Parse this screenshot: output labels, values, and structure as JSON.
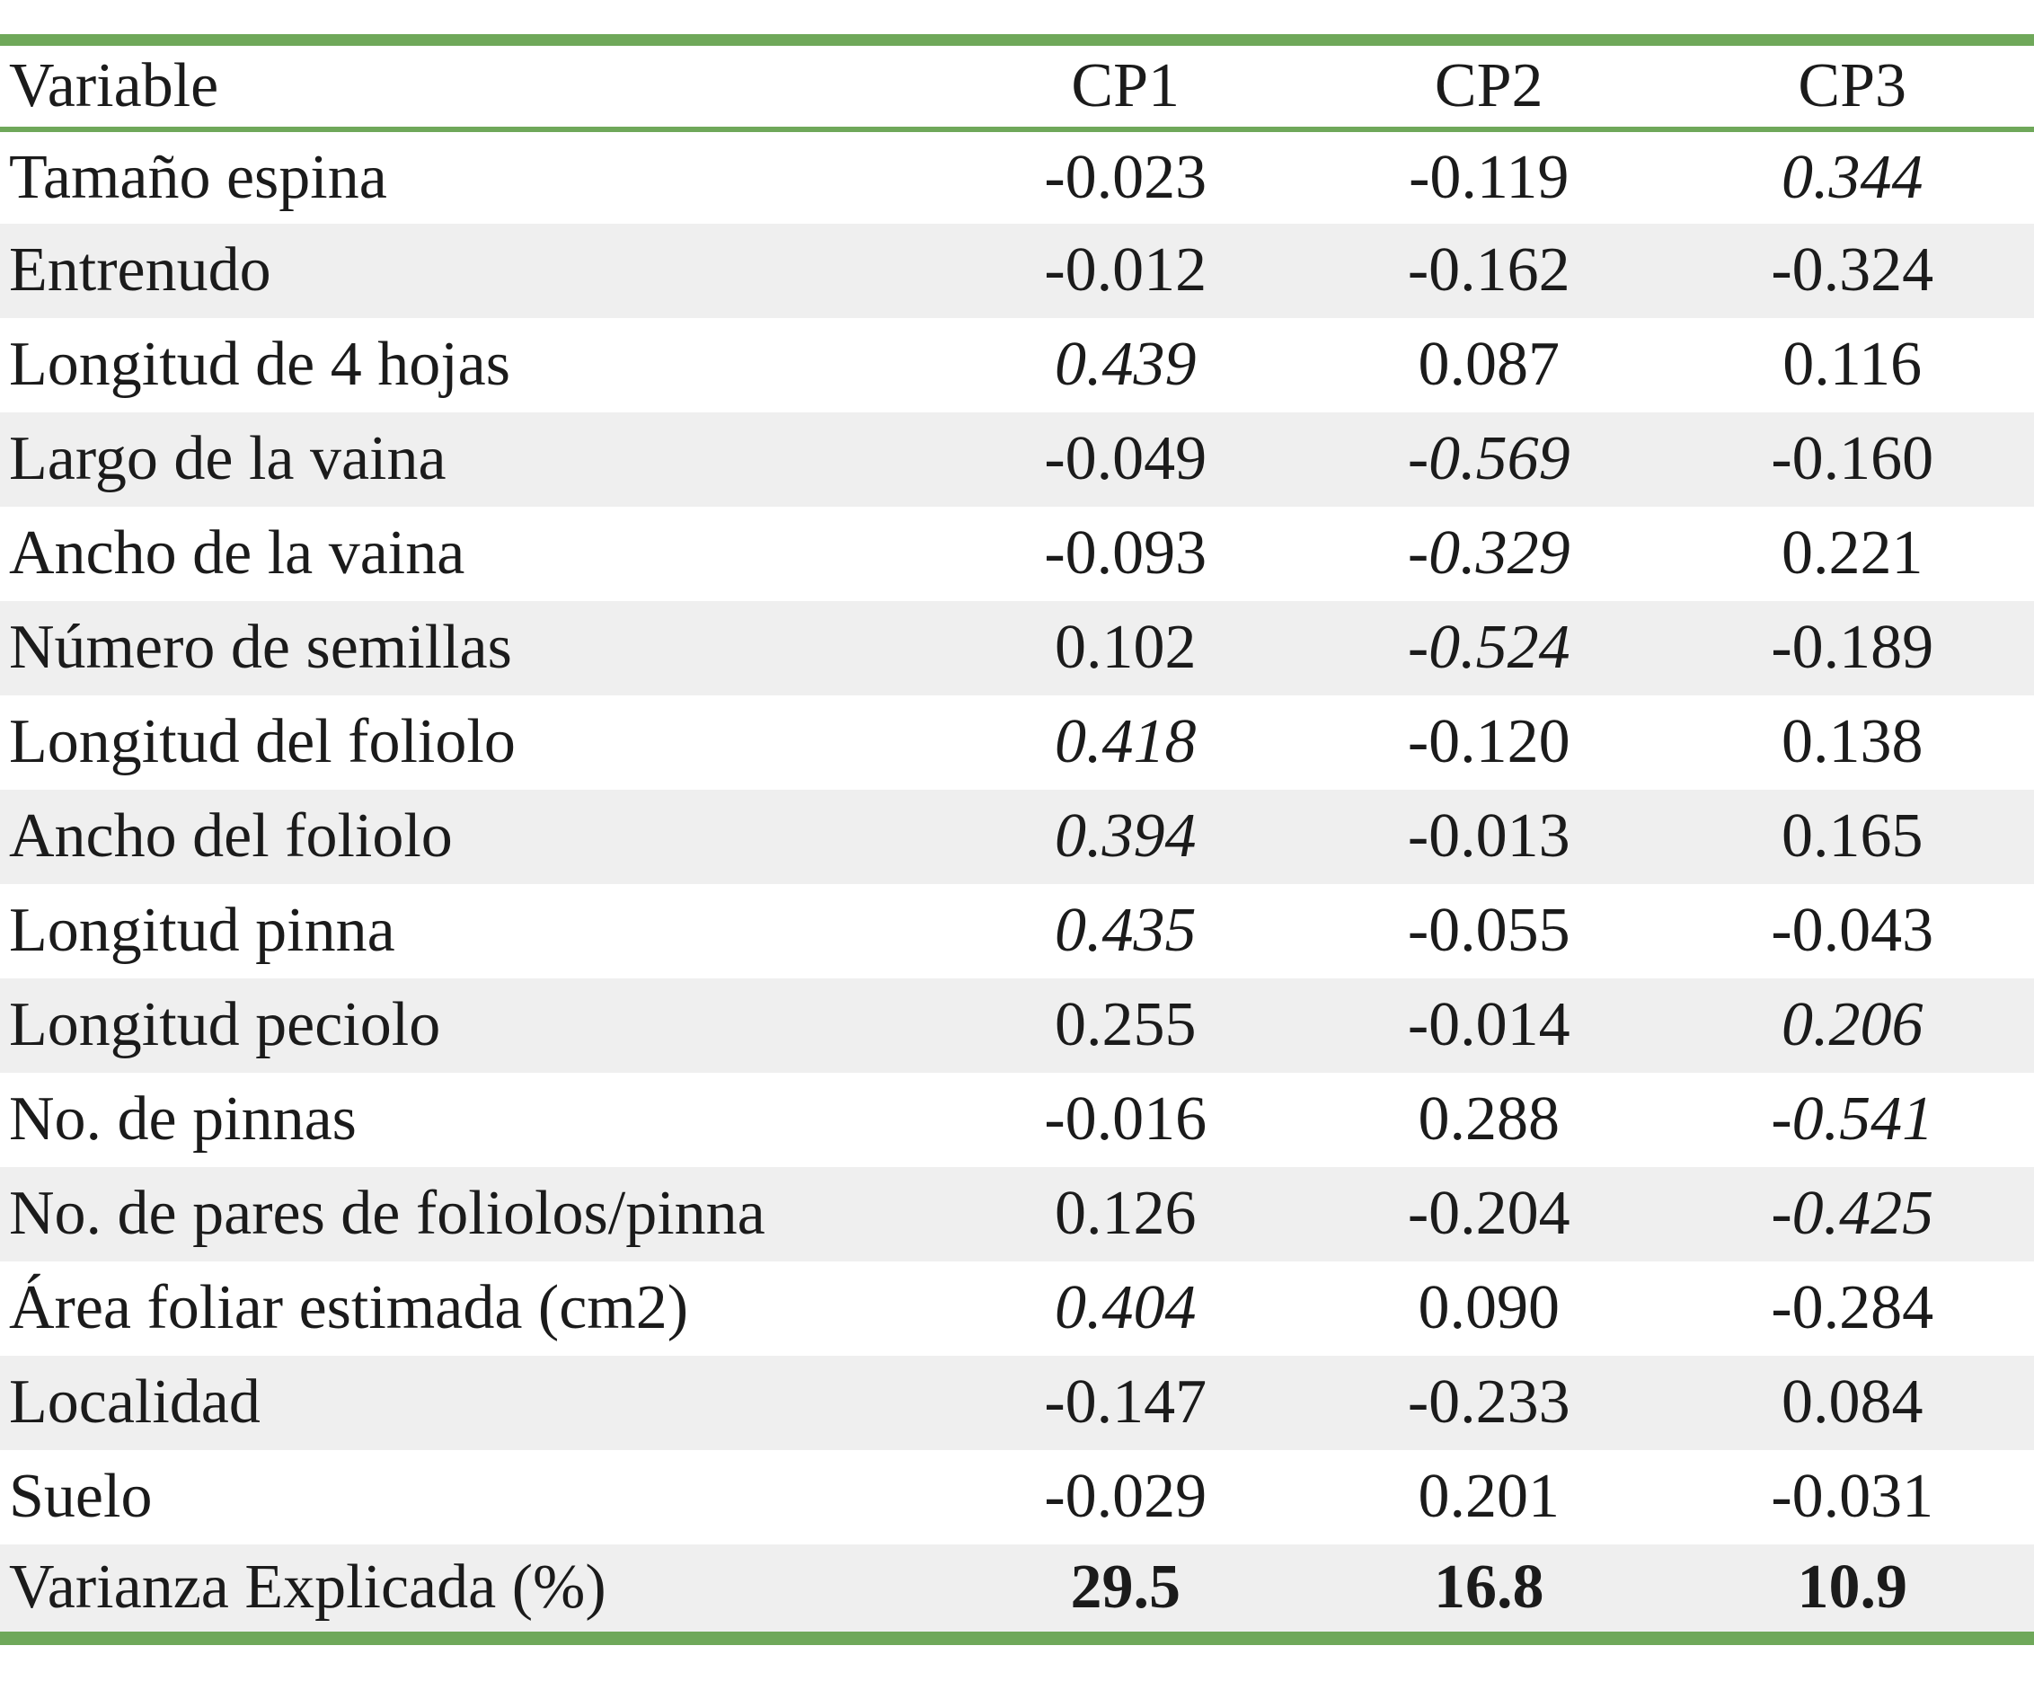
{
  "colors": {
    "accent_green": "#6fa85a",
    "row_alt_gray": "#efefef",
    "text_color": "#1b1b1b"
  },
  "table": {
    "header": {
      "variable": "Variable",
      "cp1": "CP1",
      "cp2": "CP2",
      "cp3": "CP3"
    },
    "rows": [
      {
        "variable": "Tamaño espina",
        "values": [
          "-0.023",
          "-0.119",
          "0.344"
        ],
        "italic": [
          false,
          false,
          true
        ],
        "bold": false
      },
      {
        "variable": "Entrenudo",
        "values": [
          "-0.012",
          "-0.162",
          "-0.324"
        ],
        "italic": [
          false,
          false,
          false
        ],
        "bold": false
      },
      {
        "variable": "Longitud de 4 hojas",
        "values": [
          "0.439",
          "0.087",
          "0.116"
        ],
        "italic": [
          true,
          false,
          false
        ],
        "bold": false
      },
      {
        "variable": "Largo de la vaina",
        "values": [
          "-0.049",
          "-0.569",
          "-0.160"
        ],
        "italic": [
          false,
          true,
          false
        ],
        "bold": false
      },
      {
        "variable": "Ancho de la vaina",
        "values": [
          "-0.093",
          "-0.329",
          "0.221"
        ],
        "italic": [
          false,
          true,
          false
        ],
        "bold": false
      },
      {
        "variable": "Número de semillas",
        "values": [
          "0.102",
          "-0.524",
          "-0.189"
        ],
        "italic": [
          false,
          true,
          false
        ],
        "bold": false
      },
      {
        "variable": "Longitud del foliolo",
        "values": [
          "0.418",
          "-0.120",
          "0.138"
        ],
        "italic": [
          true,
          false,
          false
        ],
        "bold": false
      },
      {
        "variable": "Ancho del foliolo",
        "values": [
          "0.394",
          "-0.013",
          "0.165"
        ],
        "italic": [
          true,
          false,
          false
        ],
        "bold": false
      },
      {
        "variable": "Longitud pinna",
        "values": [
          "0.435",
          "-0.055",
          "-0.043"
        ],
        "italic": [
          true,
          false,
          false
        ],
        "bold": false
      },
      {
        "variable": "Longitud peciolo",
        "values": [
          "0.255",
          "-0.014",
          "0.206"
        ],
        "italic": [
          false,
          false,
          true
        ],
        "bold": false
      },
      {
        "variable": "No. de pinnas",
        "values": [
          "-0.016",
          "0.288",
          "-0.541"
        ],
        "italic": [
          false,
          false,
          true
        ],
        "bold": false
      },
      {
        "variable": "No. de pares de foliolos/pinna",
        "values": [
          "0.126",
          "-0.204",
          "-0.425"
        ],
        "italic": [
          false,
          false,
          true
        ],
        "bold": false
      },
      {
        "variable": "Área foliar estimada (cm2)",
        "values": [
          "0.404",
          "0.090",
          "-0.284"
        ],
        "italic": [
          true,
          false,
          false
        ],
        "bold": false
      },
      {
        "variable": "Localidad",
        "values": [
          "-0.147",
          "-0.233",
          "0.084"
        ],
        "italic": [
          false,
          false,
          false
        ],
        "bold": false
      },
      {
        "variable": "Suelo",
        "values": [
          "-0.029",
          "0.201",
          "-0.031"
        ],
        "italic": [
          false,
          false,
          false
        ],
        "bold": false
      },
      {
        "variable": "Varianza Explicada (%)",
        "values": [
          "29.5",
          "16.8",
          "10.9"
        ],
        "italic": [
          false,
          false,
          false
        ],
        "bold": true
      }
    ]
  }
}
